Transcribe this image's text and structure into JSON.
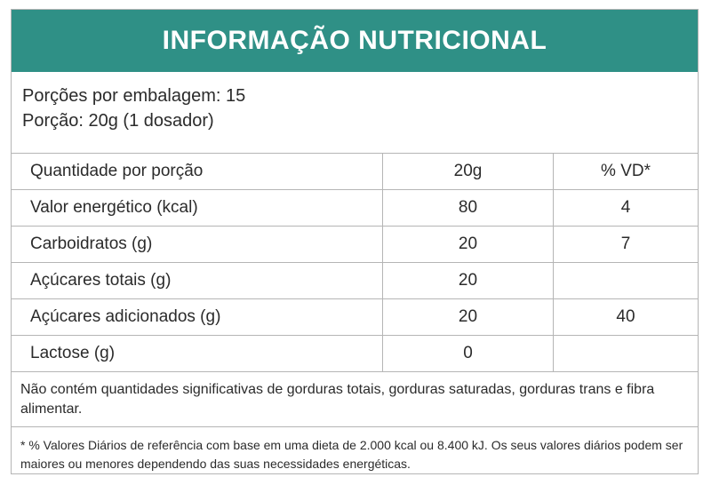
{
  "header": {
    "title": "INFORMAÇÃO NUTRICIONAL"
  },
  "portions": {
    "per_package": "Porções por embalagem: 15",
    "serving": "Porção: 20g (1 dosador)"
  },
  "table": {
    "columns": [
      "Quantidade por porção",
      "20g",
      "% VD*"
    ],
    "rows": [
      {
        "label": "Valor energético (kcal)",
        "amount": "80",
        "vd": "4"
      },
      {
        "label": "Carboidratos (g)",
        "amount": "20",
        "vd": "7"
      },
      {
        "label": "Açúcares totais (g)",
        "amount": "20",
        "vd": ""
      },
      {
        "label": "Açúcares adicionados (g)",
        "amount": "20",
        "vd": "40"
      },
      {
        "label": "Lactose (g)",
        "amount": "0",
        "vd": ""
      }
    ]
  },
  "note": "Não contém quantidades significativas de gorduras totais, gorduras saturadas, gorduras trans e fibra alimentar.",
  "footnote": "* % Valores Diários de referência com base em uma dieta de 2.000 kcal ou 8.400 kJ. Os seus valores diários podem ser maiores ou menores dependendo das suas necessidades energéticas."
}
